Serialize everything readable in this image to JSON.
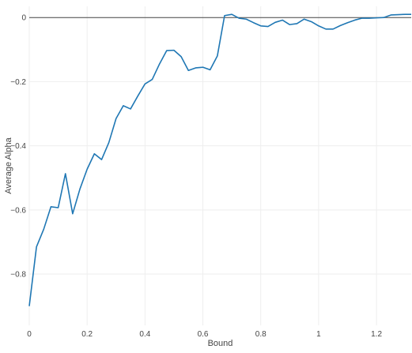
{
  "chart_data": {
    "type": "line",
    "xlabel": "Bound",
    "ylabel": "Average Alpha",
    "xlim": [
      0,
      1.32
    ],
    "ylim": [
      -0.96,
      0.035
    ],
    "grid": true,
    "x_ticks": [
      {
        "value": 0,
        "label": "0"
      },
      {
        "value": 0.2,
        "label": "0.2"
      },
      {
        "value": 0.4,
        "label": "0.4"
      },
      {
        "value": 0.6,
        "label": "0.6"
      },
      {
        "value": 0.8,
        "label": "0.8"
      },
      {
        "value": 1.0,
        "label": "1"
      },
      {
        "value": 1.2,
        "label": "1.2"
      }
    ],
    "y_ticks": [
      {
        "value": 0,
        "label": "0"
      },
      {
        "value": -0.2,
        "label": "−0.2"
      },
      {
        "value": -0.4,
        "label": "−0.4"
      },
      {
        "value": -0.6,
        "label": "−0.6"
      },
      {
        "value": -0.8,
        "label": "−0.8"
      }
    ],
    "colors": {
      "line": "#1f77b4",
      "grid": "#eeeeee",
      "zero_line": "#444444"
    },
    "series": [
      {
        "x": [
          0,
          0.025,
          0.05,
          0.075,
          0.1,
          0.125,
          0.15,
          0.175,
          0.2,
          0.225,
          0.25,
          0.275,
          0.3,
          0.325,
          0.35,
          0.375,
          0.4,
          0.425,
          0.45,
          0.475,
          0.5,
          0.525,
          0.55,
          0.575,
          0.6,
          0.625,
          0.65,
          0.675,
          0.7,
          0.725,
          0.75,
          0.775,
          0.8,
          0.825,
          0.85,
          0.875,
          0.9,
          0.925,
          0.95,
          0.975,
          1.0,
          1.025,
          1.05,
          1.075,
          1.1,
          1.125,
          1.15,
          1.175,
          1.2,
          1.225,
          1.25,
          1.275,
          1.3,
          1.32
        ],
        "y": [
          -0.9,
          -0.715,
          -0.66,
          -0.59,
          -0.593,
          -0.487,
          -0.612,
          -0.535,
          -0.473,
          -0.425,
          -0.443,
          -0.39,
          -0.315,
          -0.275,
          -0.285,
          -0.245,
          -0.207,
          -0.193,
          -0.145,
          -0.103,
          -0.102,
          -0.122,
          -0.165,
          -0.157,
          -0.155,
          -0.163,
          -0.12,
          0.006,
          0.01,
          -0.002,
          -0.005,
          -0.016,
          -0.026,
          -0.028,
          -0.015,
          -0.008,
          -0.022,
          -0.019,
          -0.005,
          -0.013,
          -0.026,
          -0.036,
          -0.036,
          -0.025,
          -0.016,
          -0.008,
          -0.002,
          -0.002,
          -0.001,
          0.0,
          0.008,
          0.009,
          0.01,
          0.01
        ]
      }
    ]
  }
}
